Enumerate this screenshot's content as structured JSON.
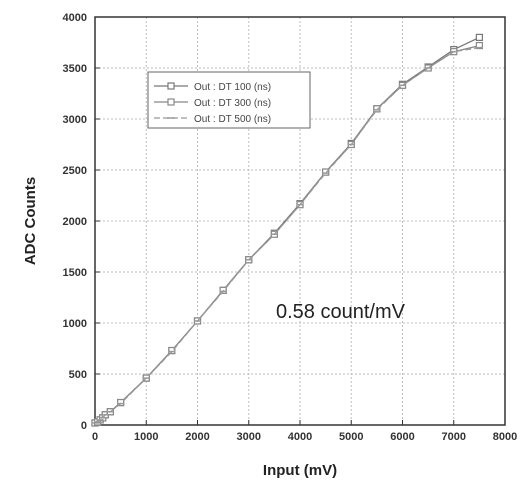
{
  "chart_data": {
    "type": "line",
    "xlabel": "Input (mV)",
    "ylabel": "ADC Counts",
    "xlim": [
      0,
      8000
    ],
    "ylim": [
      0,
      4000
    ],
    "xticks": [
      0,
      1000,
      2000,
      3000,
      4000,
      5000,
      6000,
      7000,
      8000
    ],
    "yticks": [
      0,
      500,
      1000,
      1500,
      2000,
      2500,
      3000,
      3500,
      4000
    ],
    "grid": true,
    "legend_position": "upper-left",
    "annotation": "0.58 count/mV",
    "x": [
      0,
      50,
      100,
      150,
      200,
      300,
      500,
      1000,
      1500,
      2000,
      2500,
      3000,
      3500,
      4000,
      4500,
      5000,
      5500,
      6000,
      6500,
      7000,
      7500
    ],
    "series": [
      {
        "name": "Out : DT 100 (ns)",
        "marker": "square",
        "color": "#777777",
        "values": [
          20,
          30,
          50,
          70,
          100,
          130,
          220,
          460,
          730,
          1020,
          1320,
          1620,
          1880,
          2170,
          2480,
          2760,
          3100,
          3340,
          3510,
          3680,
          3800
        ]
      },
      {
        "name": "Out : DT 300 (ns)",
        "marker": "square",
        "color": "#888888",
        "values": [
          20,
          30,
          50,
          70,
          100,
          130,
          220,
          460,
          730,
          1020,
          1320,
          1620,
          1870,
          2160,
          2480,
          2750,
          3100,
          3330,
          3500,
          3660,
          3720
        ]
      },
      {
        "name": "Out : DT 500 (ns)",
        "marker": "dash",
        "color": "#999999",
        "values": [
          20,
          30,
          50,
          70,
          100,
          130,
          210,
          460,
          720,
          1020,
          1310,
          1620,
          1870,
          2160,
          2470,
          2750,
          3090,
          3330,
          3500,
          3660,
          3700
        ]
      }
    ]
  }
}
